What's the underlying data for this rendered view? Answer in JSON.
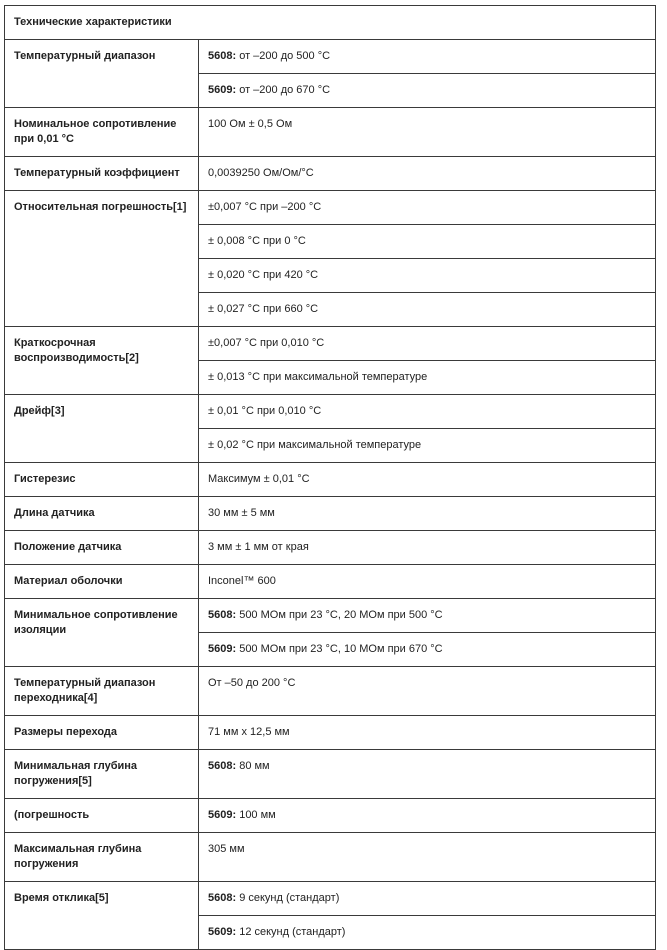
{
  "title": "Технические характеристики",
  "rows": [
    {
      "label": "Температурный диапазон",
      "values": [
        {
          "prefix": "5608:",
          "text": " от –200 до 500 °C"
        },
        {
          "prefix": "5609:",
          "text": " от –200 до 670 °C"
        }
      ]
    },
    {
      "label": "Номинальное сопротивление при 0,01 °C",
      "values": [
        {
          "prefix": "",
          "text": "100 Ом ± 0,5 Ом"
        }
      ]
    },
    {
      "label": "Температурный коэффициент",
      "values": [
        {
          "prefix": "",
          "text": "0,0039250 Ом/Ом/°C"
        }
      ]
    },
    {
      "label": "Относительная погрешность[1]",
      "values": [
        {
          "prefix": "",
          "text": "±0,007 °C при –200 °C"
        },
        {
          "prefix": "",
          "text": "± 0,008 °C при 0 °C"
        },
        {
          "prefix": "",
          "text": "± 0,020 °C при 420 °C"
        },
        {
          "prefix": "",
          "text": "± 0,027 °C при 660 °C"
        }
      ]
    },
    {
      "label": "Краткосрочная воспроизводимость[2]",
      "values": [
        {
          "prefix": "",
          "text": "±0,007 °C при 0,010 °C"
        },
        {
          "prefix": "",
          "text": "± 0,013 °C при максимальной температуре"
        }
      ]
    },
    {
      "label": "Дрейф[3]",
      "values": [
        {
          "prefix": "",
          "text": "± 0,01 °C при 0,010 °C"
        },
        {
          "prefix": "",
          "text": "± 0,02 °C при максимальной температуре"
        }
      ]
    },
    {
      "label": "Гистерезис",
      "values": [
        {
          "prefix": "",
          "text": "Максимум ±  0,01 °C"
        }
      ]
    },
    {
      "label": "Длина датчика",
      "values": [
        {
          "prefix": "",
          "text": "30 мм ± 5 мм"
        }
      ]
    },
    {
      "label": "Положение датчика",
      "values": [
        {
          "prefix": "",
          "text": "3 мм ± 1 мм от края"
        }
      ]
    },
    {
      "label": "Материал оболочки",
      "values": [
        {
          "prefix": "",
          "text": "Inconel™ 600"
        }
      ]
    },
    {
      "label": "Минимальное сопротивление изоляции",
      "values": [
        {
          "prefix": "5608:",
          "text": " 500 МОм при 23 °C, 20 МОм при 500 °C"
        },
        {
          "prefix": "5609:",
          "text": " 500 МОм при 23 °C, 10 МОм при 670 °C"
        }
      ]
    },
    {
      "label": "Температурный диапазон переходника[4]",
      "values": [
        {
          "prefix": "",
          "text": "От –50 до 200 °C"
        }
      ]
    },
    {
      "label": "Размеры перехода",
      "values": [
        {
          "prefix": "",
          "text": "71 мм x 12,5 мм"
        }
      ]
    },
    {
      "label": "Минимальная глубина погружения[5]",
      "values": [
        {
          "prefix": "5608:",
          "text": " 80 мм"
        }
      ]
    },
    {
      "label": "(погрешность",
      "values": [
        {
          "prefix": "5609:",
          "text": " 100 мм"
        }
      ]
    },
    {
      "label": "Максимальная глубина погружения",
      "values": [
        {
          "prefix": "",
          "text": "305 мм"
        }
      ]
    },
    {
      "label": "Время отклика[5]",
      "values": [
        {
          "prefix": "5608:",
          "text": " 9 секунд (стандарт)"
        },
        {
          "prefix": "5609:",
          "text": " 12 секунд (стандарт)"
        }
      ]
    }
  ]
}
